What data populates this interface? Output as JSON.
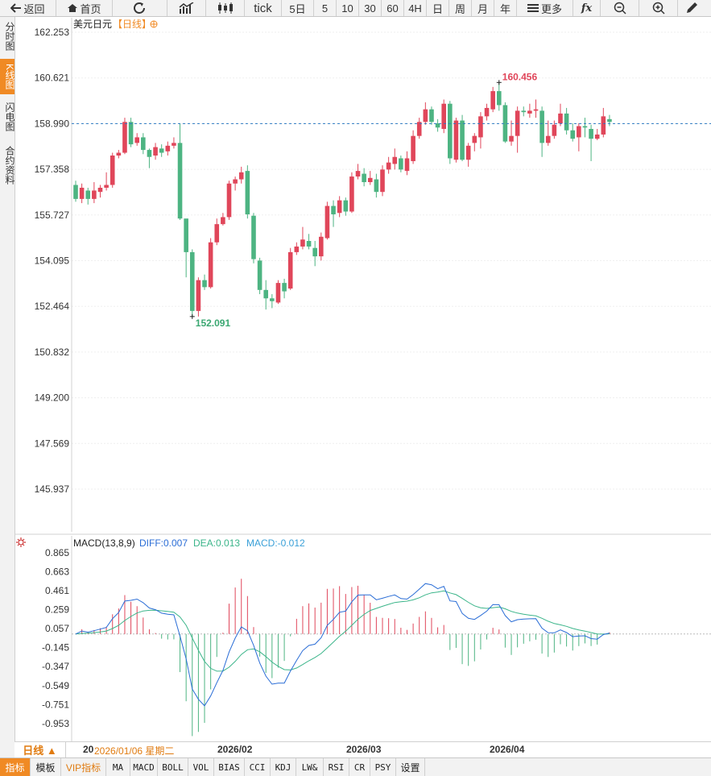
{
  "toolbar": {
    "back": "返回",
    "home": "首页",
    "tick": "tick",
    "periods": [
      "5日",
      "5",
      "10",
      "30",
      "60",
      "4H",
      "日",
      "周",
      "月",
      "年"
    ],
    "more": "更多"
  },
  "left_tabs": [
    "分时图",
    "K线图",
    "闪电图",
    "合约资料"
  ],
  "chart_header": {
    "name": "美元日元",
    "period": "【日线】"
  },
  "macd_header": {
    "label": "MACD(13,8,9)",
    "diff": "DIFF:0.007",
    "dea": "DEA:0.013",
    "macd": "MACD:-0.012"
  },
  "bottom": {
    "period_button": "日线 ▲",
    "date_prefix": "20",
    "date_tooltip": "2026/01/06 星期二",
    "month_labels": [
      "2026/02",
      "2026/03",
      "2026/04"
    ]
  },
  "indicator_bar": [
    "指标",
    "模板",
    "VIP指标",
    "MA",
    "MACD",
    "BOLL",
    "VOL",
    "BIAS",
    "CCI",
    "KDJ",
    "LW&",
    "RSI",
    "CR",
    "PSY",
    "设置"
  ],
  "colors": {
    "up": "#e0465a",
    "down": "#4db482",
    "accent": "#f08a24",
    "diff_line": "#2a6dd6",
    "dea_line": "#3bb58a",
    "dashed": "#2b79c2"
  },
  "chart_data": [
    {
      "type": "candlestick",
      "y_ticks": [
        "162.253",
        "160.621",
        "158.990",
        "157.358",
        "155.727",
        "154.095",
        "152.464",
        "150.832",
        "149.200",
        "147.569",
        "145.937"
      ],
      "ylim": [
        145.937,
        162.253
      ],
      "current_price_line": 158.99,
      "annotations": {
        "high": "160.456",
        "low": "152.091"
      },
      "candles": [
        [
          156.8,
          156.3,
          156.95,
          156.2
        ],
        [
          156.3,
          156.7,
          156.85,
          156.15
        ],
        [
          156.6,
          156.3,
          156.7,
          156.1
        ],
        [
          156.3,
          156.6,
          156.9,
          156.15
        ],
        [
          156.55,
          156.7,
          156.8,
          156.35
        ],
        [
          156.7,
          156.8,
          157.25,
          156.6
        ],
        [
          156.8,
          157.85,
          157.95,
          156.7
        ],
        [
          157.85,
          157.95,
          158.05,
          157.75
        ],
        [
          157.95,
          159.05,
          159.2,
          157.9
        ],
        [
          159.05,
          158.25,
          159.2,
          158.15
        ],
        [
          158.3,
          158.5,
          158.65,
          158.2
        ],
        [
          158.5,
          158.05,
          158.65,
          157.9
        ],
        [
          158.05,
          157.8,
          158.1,
          157.4
        ],
        [
          157.85,
          158.15,
          158.3,
          157.7
        ],
        [
          158.1,
          157.95,
          158.25,
          157.8
        ],
        [
          158,
          158.2,
          158.35,
          157.85
        ],
        [
          158.2,
          158.3,
          158.5,
          158.1
        ],
        [
          158.3,
          155.6,
          159.0,
          155.55
        ],
        [
          155.6,
          154.4,
          154.8,
          153.5
        ],
        [
          154.4,
          152.3,
          154.5,
          152.1
        ],
        [
          152.3,
          153.4,
          153.5,
          152.1
        ],
        [
          153.4,
          153.15,
          153.6,
          153.05
        ],
        [
          153.15,
          154.75,
          154.9,
          153.1
        ],
        [
          154.75,
          155.4,
          155.6,
          154.65
        ],
        [
          155.4,
          155.65,
          155.8,
          155.35
        ],
        [
          155.65,
          156.85,
          156.95,
          155.55
        ],
        [
          156.85,
          157.0,
          157.1,
          156.6
        ],
        [
          157.0,
          157.25,
          157.45,
          156.85
        ],
        [
          157.3,
          155.75,
          157.5,
          155.6
        ],
        [
          155.7,
          154.15,
          155.8,
          154.0
        ],
        [
          154.1,
          153.05,
          154.2,
          152.9
        ],
        [
          153.05,
          152.75,
          153.4,
          152.35
        ],
        [
          152.75,
          152.65,
          152.9,
          152.4
        ],
        [
          152.6,
          153.3,
          153.4,
          152.55
        ],
        [
          153.3,
          153.0,
          153.45,
          152.75
        ],
        [
          153.1,
          154.4,
          154.55,
          153.05
        ],
        [
          154.4,
          154.6,
          154.75,
          154.3
        ],
        [
          154.6,
          154.85,
          155.3,
          154.5
        ],
        [
          154.8,
          154.6,
          155.05,
          154.5
        ],
        [
          154.55,
          154.25,
          154.8,
          153.9
        ],
        [
          154.25,
          154.95,
          155.1,
          154.1
        ],
        [
          154.9,
          156.05,
          156.2,
          154.85
        ],
        [
          156.05,
          155.75,
          156.25,
          155.3
        ],
        [
          155.8,
          156.25,
          156.4,
          155.65
        ],
        [
          156.25,
          155.85,
          156.35,
          155.7
        ],
        [
          155.85,
          157.1,
          157.25,
          155.8
        ],
        [
          157.1,
          157.3,
          157.55,
          157.0
        ],
        [
          157.2,
          156.9,
          157.4,
          156.75
        ],
        [
          156.9,
          157.05,
          157.3,
          156.8
        ],
        [
          157.0,
          156.55,
          157.2,
          156.35
        ],
        [
          156.55,
          157.35,
          157.5,
          156.4
        ],
        [
          157.35,
          157.6,
          157.8,
          157.2
        ],
        [
          157.55,
          157.8,
          158.1,
          157.35
        ],
        [
          157.75,
          157.35,
          157.85,
          157.25
        ],
        [
          157.3,
          157.75,
          158.0,
          157.15
        ],
        [
          157.65,
          158.55,
          158.75,
          157.55
        ],
        [
          158.55,
          159.05,
          159.2,
          158.45
        ],
        [
          159.05,
          159.5,
          159.75,
          158.95
        ],
        [
          159.5,
          159.05,
          159.6,
          158.95
        ],
        [
          159.0,
          158.85,
          159.15,
          158.7
        ],
        [
          158.8,
          159.7,
          159.85,
          158.65
        ],
        [
          159.7,
          157.75,
          159.8,
          157.55
        ],
        [
          157.7,
          159.1,
          159.2,
          157.6
        ],
        [
          159.1,
          157.7,
          159.3,
          157.65
        ],
        [
          157.7,
          158.2,
          158.3,
          157.45
        ],
        [
          158.3,
          158.55,
          158.65,
          158.0
        ],
        [
          158.5,
          159.25,
          159.4,
          158.1
        ],
        [
          159.25,
          159.55,
          159.7,
          159.1
        ],
        [
          159.5,
          160.15,
          160.3,
          159.4
        ],
        [
          160.15,
          159.65,
          160.46,
          159.45
        ],
        [
          159.65,
          158.35,
          159.75,
          158.3
        ],
        [
          158.35,
          158.55,
          159.1,
          158.2
        ],
        [
          158.55,
          159.45,
          159.6,
          157.95
        ],
        [
          159.45,
          159.4,
          159.6,
          159.25
        ],
        [
          159.35,
          159.45,
          159.7,
          159.2
        ],
        [
          159.45,
          159.5,
          159.85,
          159.2
        ],
        [
          159.45,
          158.3,
          159.6,
          157.8
        ],
        [
          158.3,
          158.55,
          159.1,
          158.2
        ],
        [
          158.55,
          158.95,
          159.1,
          158.45
        ],
        [
          159.0,
          159.35,
          159.7,
          158.9
        ],
        [
          159.35,
          158.75,
          159.55,
          158.6
        ],
        [
          158.75,
          158.45,
          159.0,
          158.35
        ],
        [
          158.5,
          158.9,
          159.0,
          158.0
        ],
        [
          158.9,
          158.85,
          159.2,
          158.5
        ],
        [
          158.8,
          158.45,
          158.95,
          157.65
        ],
        [
          158.45,
          158.6,
          158.8,
          158.4
        ],
        [
          158.6,
          159.25,
          159.55,
          158.5
        ],
        [
          159.15,
          159.05,
          159.3,
          158.9
        ]
      ]
    },
    {
      "type": "macd",
      "params": "13,8,9",
      "y_ticks": [
        "0.865",
        "0.663",
        "0.461",
        "0.259",
        "0.057",
        "-0.145",
        "-0.347",
        "-0.549",
        "-0.751",
        "-0.953"
      ],
      "ylim": [
        -1.1,
        0.865
      ]
    }
  ]
}
